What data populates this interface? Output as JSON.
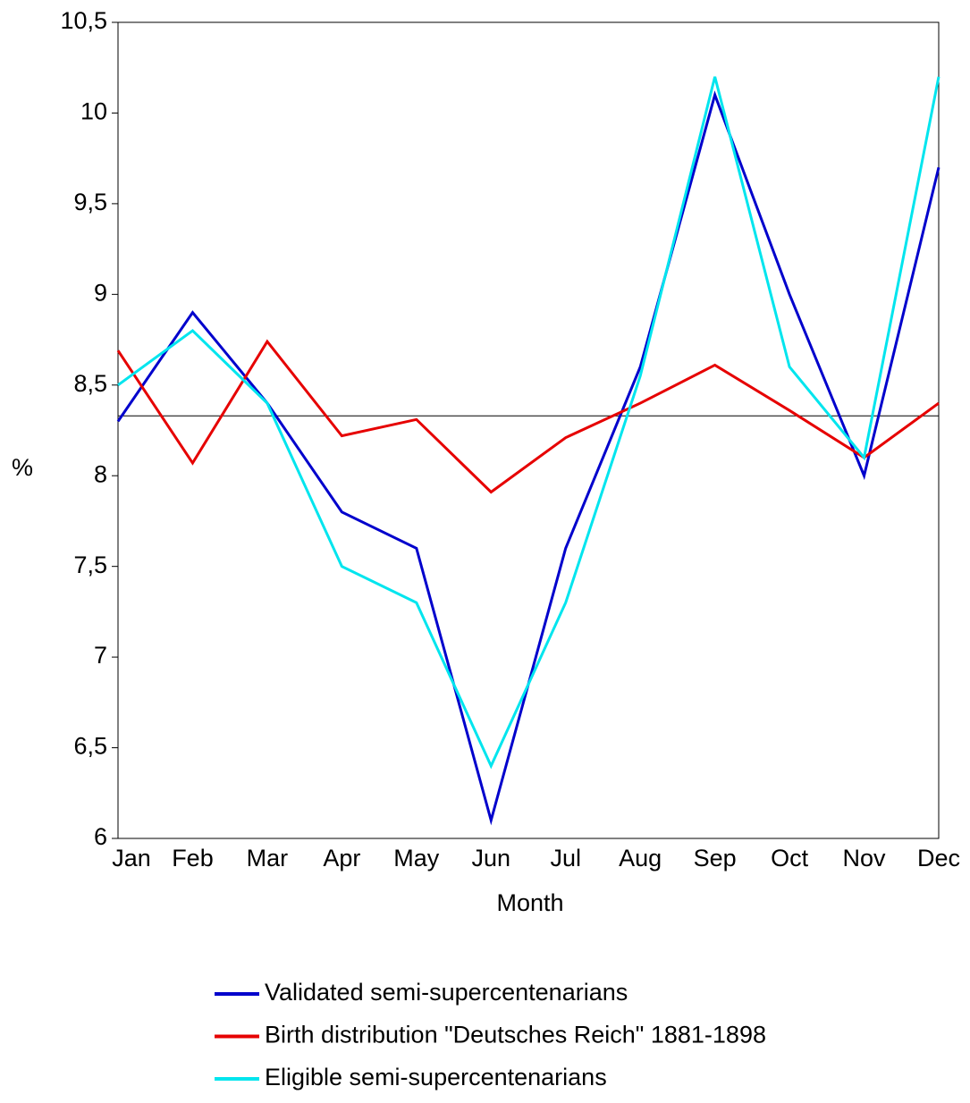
{
  "chart_data": {
    "type": "line",
    "x_label": "Month",
    "y_label": "%",
    "categories": [
      "Jan",
      "Feb",
      "Mar",
      "Apr",
      "May",
      "Jun",
      "Jul",
      "Aug",
      "Sep",
      "Oct",
      "Nov",
      "Dec"
    ],
    "series": [
      {
        "name": "Validated semi-supercentenarians",
        "color": "#0000cc",
        "values": [
          8.3,
          8.9,
          8.4,
          7.8,
          7.6,
          6.1,
          7.6,
          8.6,
          10.1,
          9.0,
          8.0,
          9.7
        ]
      },
      {
        "name": "Birth distribution \"Deutsches Reich\" 1881-1898",
        "color": "#e60000",
        "values": [
          8.69,
          8.07,
          8.74,
          8.22,
          8.31,
          7.91,
          8.21,
          8.4,
          8.61,
          8.36,
          8.1,
          8.4
        ]
      },
      {
        "name": "Eligible semi-supercentenarians",
        "color": "#00e5ee",
        "values": [
          8.5,
          8.8,
          8.4,
          7.5,
          7.3,
          6.4,
          7.3,
          8.55,
          10.2,
          8.6,
          8.1,
          10.2
        ]
      }
    ],
    "reference_line": 8.33,
    "ylim": [
      6,
      10.5
    ],
    "yticks": [
      6,
      {
        "value": 6.5,
        "label": "6,5"
      },
      7,
      {
        "value": 7.5,
        "label": "7,5"
      },
      8,
      {
        "value": 8.5,
        "label": "8,5"
      },
      9,
      {
        "value": 9.5,
        "label": "9,5"
      },
      10,
      {
        "value": 10.5,
        "label": "10,5"
      }
    ],
    "grid": false
  }
}
